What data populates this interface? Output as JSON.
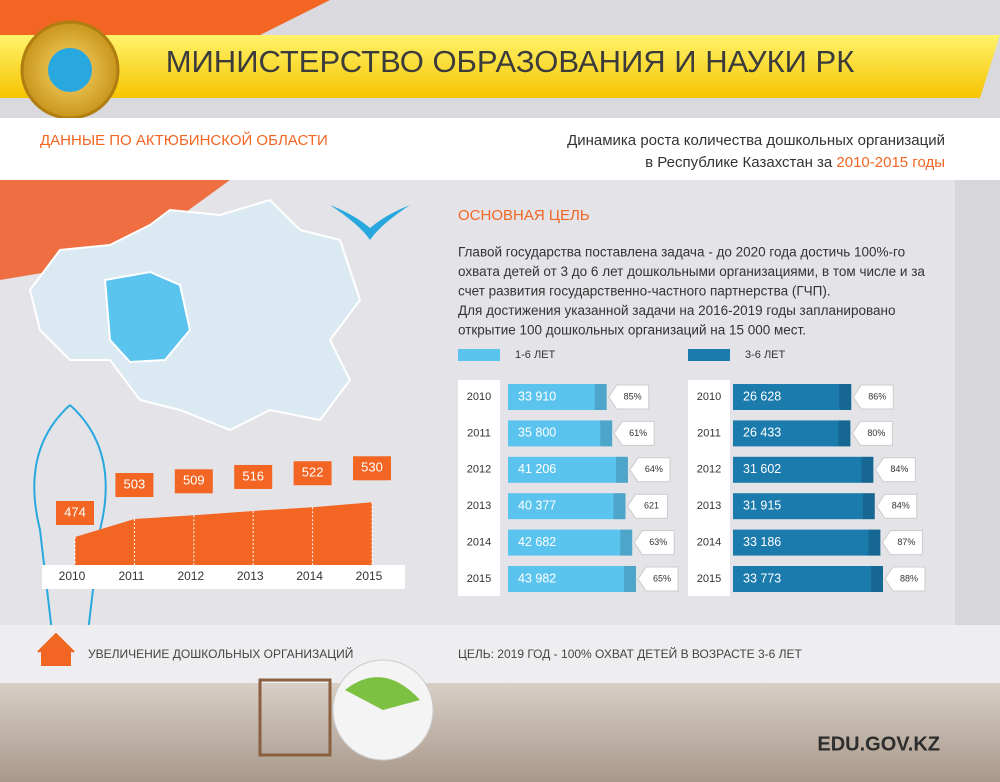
{
  "header": {
    "title": "МИНИСТЕРСТВО ОБРАЗОВАНИЯ И НАУКИ РК"
  },
  "region": "ДАННЫЕ ПО АКТЮБИНСКОЙ ОБЛАСТИ",
  "subtitle": {
    "line1": "Динамика роста количества дошкольных организаций",
    "line2": "в Республике Казахстан за ",
    "highlight": "2010-2015 годы"
  },
  "goal": {
    "title": "ОСНОВНАЯ ЦЕЛЬ",
    "lines": [
      "Главой государства поставлена задача - до 2020 года достичь 100%-го",
      "охвата детей от 3 до 6 лет дошкольными организациями, в том числе и за",
      "счет развития государственно-частного партнерства (ГЧП).",
      "Для достижения указанной задачи на 2016-2019 годы запланировано",
      "открытие 100 дошкольных организаций на 15 000 мест."
    ]
  },
  "chart_data": [
    {
      "type": "area",
      "categories": [
        "2010",
        "2011",
        "2012",
        "2013",
        "2014",
        "2015"
      ],
      "values": [
        474,
        503,
        509,
        516,
        522,
        530
      ],
      "color": "#f26522",
      "caption": "УВЕЛИЧЕНИЕ ДОШКОЛЬНЫХ ОРГАНИЗАЦИЙ"
    },
    {
      "type": "bar",
      "name": "1-6 ЛЕТ",
      "categories": [
        "2010",
        "2011",
        "2012",
        "2013",
        "2014",
        "2015"
      ],
      "values": [
        33910,
        35800,
        41206,
        40377,
        42682,
        43982
      ],
      "value_labels": [
        "33 910",
        "35 800",
        "41 206",
        "40 377",
        "42 682",
        "43 982"
      ],
      "shares": [
        85,
        61,
        64,
        621,
        63,
        65
      ],
      "share_labels": [
        "85%",
        "61%",
        "64%",
        "621",
        "63%",
        "65%"
      ],
      "color": "#5bc4ee"
    },
    {
      "type": "bar",
      "name": "3-6 ЛЕТ",
      "categories": [
        "2010",
        "2011",
        "2012",
        "2013",
        "2014",
        "2015"
      ],
      "values": [
        26628,
        26433,
        31602,
        31915,
        33186,
        33773
      ],
      "value_labels": [
        "26 628",
        "26 433",
        "31 602",
        "31 915",
        "33 186",
        "33 773"
      ],
      "shares": [
        86,
        80,
        84,
        84,
        87,
        88
      ],
      "share_labels": [
        "86%",
        "80%",
        "84%",
        "84%",
        "87%",
        "88%"
      ],
      "color": "#1b7bad",
      "caption": "ЦЕЛЬ: 2019 ГОД - 100% ОХВАТ ДЕТЕЙ В ВОЗРАСТЕ 3-6 ЛЕТ"
    }
  ],
  "footer": {
    "site": "EDU.GOV.KZ"
  }
}
